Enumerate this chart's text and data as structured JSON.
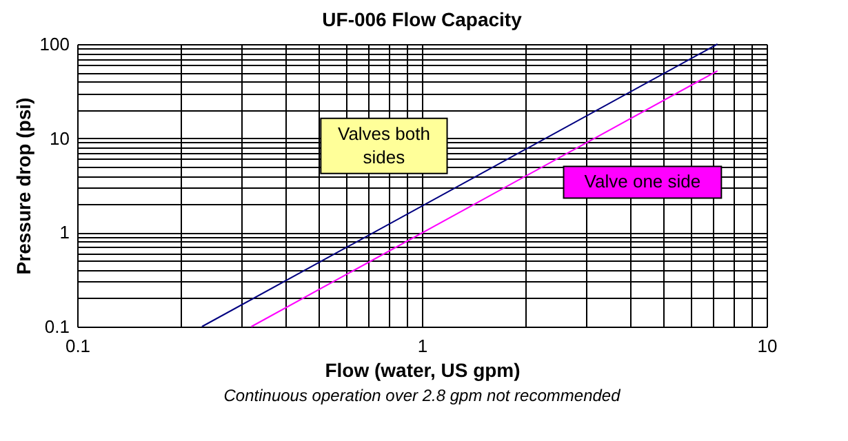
{
  "chart_data": {
    "type": "line",
    "title": "UF-006 Flow Capacity",
    "xlabel": "Flow (water, US gpm)",
    "ylabel": "Pressure drop (psi)",
    "annotations": [
      "Continuous operation over 2.8 gpm not recommended"
    ],
    "series": [
      {
        "name": "Valves both sides",
        "color": "#000080",
        "x": [
          0.23,
          7.2
        ],
        "values": [
          0.1,
          100
        ]
      },
      {
        "name": "Valve one side",
        "color": "#ff00ff",
        "x": [
          0.32,
          7.2
        ],
        "values": [
          0.1,
          52
        ]
      }
    ],
    "log": "xy",
    "grid": true,
    "legend": false,
    "marker": "none",
    "line_style": "solid",
    "xlim": [
      0.1,
      10
    ],
    "ylim": [
      0.1,
      100
    ],
    "xticks": [
      0.1,
      {
        "value": 0.2,
        "label": null
      },
      {
        "value": 0.3,
        "label": null
      },
      {
        "value": 0.4,
        "label": null
      },
      {
        "value": 0.5,
        "label": null
      },
      {
        "value": 0.6,
        "label": null
      },
      {
        "value": 0.7,
        "label": null
      },
      {
        "value": 0.8,
        "label": null
      },
      {
        "value": 0.9,
        "label": null
      },
      1,
      {
        "value": 2,
        "label": null
      },
      {
        "value": 3,
        "label": null
      },
      {
        "value": 4,
        "label": null
      },
      {
        "value": 5,
        "label": null
      },
      {
        "value": 6,
        "label": null
      },
      {
        "value": 7,
        "label": null
      },
      {
        "value": 8,
        "label": null
      },
      {
        "value": 9,
        "label": null
      },
      10
    ],
    "yticks": [
      0.1,
      {
        "value": 0.2,
        "label": null
      },
      {
        "value": 0.3,
        "label": null
      },
      {
        "value": 0.4,
        "label": null
      },
      {
        "value": 0.5,
        "label": null
      },
      {
        "value": 0.6,
        "label": null
      },
      {
        "value": 0.7,
        "label": null
      },
      {
        "value": 0.8,
        "label": null
      },
      {
        "value": 0.9,
        "label": null
      },
      1,
      {
        "value": 2,
        "label": null
      },
      {
        "value": 3,
        "label": null
      },
      {
        "value": 4,
        "label": null
      },
      {
        "value": 5,
        "label": null
      },
      {
        "value": 6,
        "label": null
      },
      {
        "value": 7,
        "label": null
      },
      {
        "value": 8,
        "label": null
      },
      {
        "value": 9,
        "label": null
      },
      10,
      {
        "value": 20,
        "label": null
      },
      {
        "value": 30,
        "label": null
      },
      {
        "value": 40,
        "label": null
      },
      {
        "value": 50,
        "label": null
      },
      {
        "value": 60,
        "label": null
      },
      {
        "value": 70,
        "label": null
      },
      {
        "value": 80,
        "label": null
      },
      {
        "value": 90,
        "label": null
      },
      100
    ]
  }
}
